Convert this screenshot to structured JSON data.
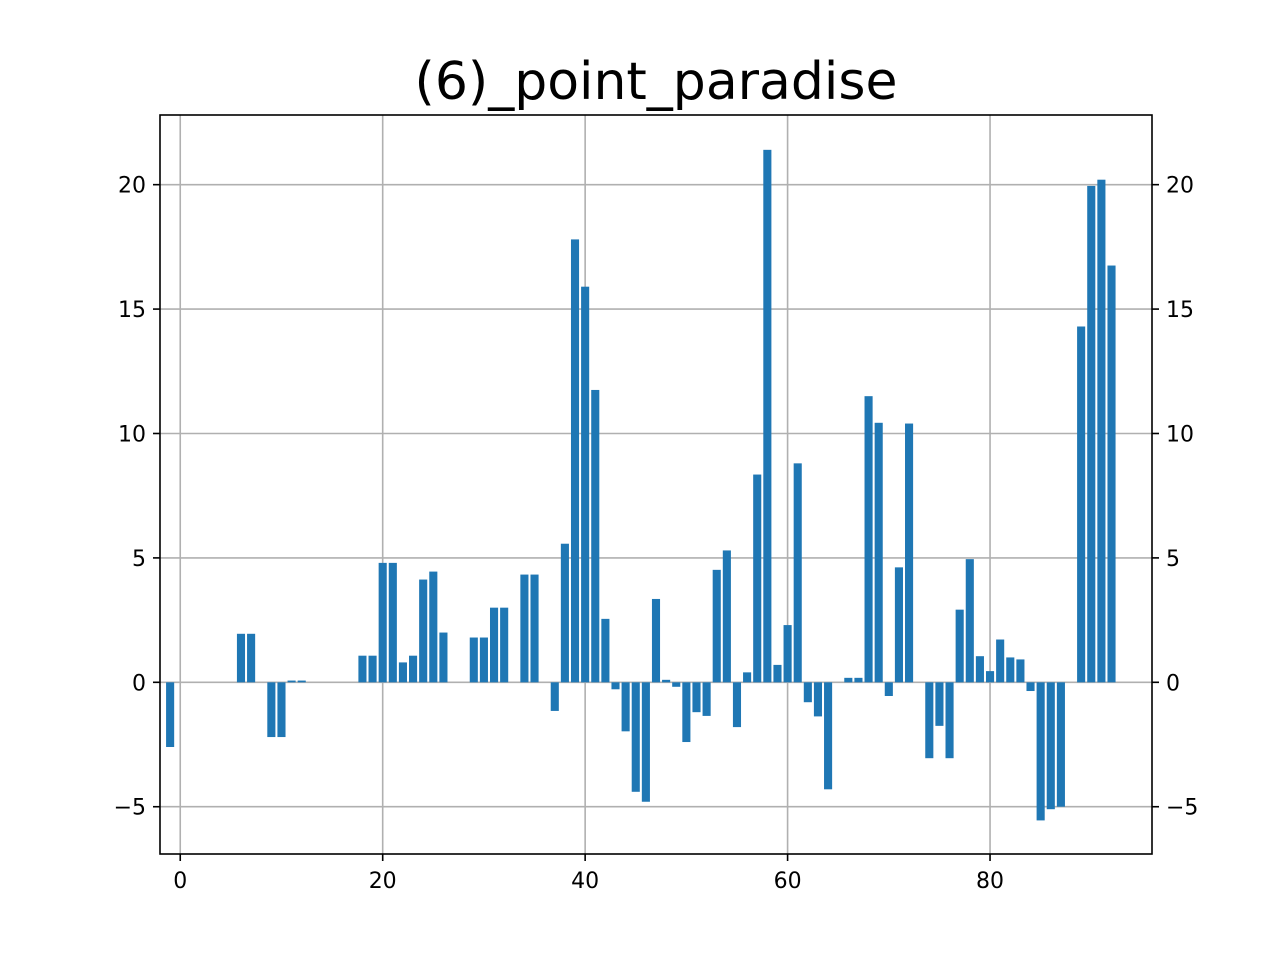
{
  "chart_data": {
    "type": "bar",
    "title": "(6)_point_paradise",
    "xlabel": "",
    "ylabel": "",
    "xlim": [
      -2,
      96
    ],
    "ylim": [
      -6.9,
      22.8
    ],
    "x_ticks": [
      0,
      20,
      40,
      60,
      80
    ],
    "y_ticks": [
      -5,
      0,
      5,
      10,
      15,
      20
    ],
    "y_tick_labels": [
      "−5",
      "0",
      "5",
      "10",
      "15",
      "20"
    ],
    "y_axis_right_mirror": true,
    "grid": true,
    "bar_color": "#1f77b4",
    "x": [
      -1,
      6,
      7,
      9,
      10,
      11,
      12,
      18,
      19,
      20,
      21,
      22,
      23,
      24,
      25,
      26,
      29,
      30,
      31,
      32,
      34,
      35,
      37,
      38,
      39,
      40,
      41,
      42,
      43,
      44,
      45,
      46,
      47,
      48,
      49,
      50,
      51,
      52,
      53,
      54,
      55,
      56,
      57,
      58,
      59,
      60,
      61,
      62,
      63,
      64,
      66,
      67,
      68,
      69,
      70,
      71,
      72,
      74,
      75,
      76,
      77,
      78,
      79,
      80,
      81,
      82,
      83,
      84,
      85,
      86,
      87,
      89,
      90,
      91,
      92
    ],
    "values": [
      -2.6,
      1.95,
      1.95,
      -2.2,
      -2.2,
      0.07,
      0.07,
      1.07,
      1.07,
      4.8,
      4.8,
      0.8,
      1.07,
      4.13,
      4.45,
      2.0,
      1.8,
      1.8,
      3.0,
      3.0,
      4.33,
      4.33,
      -1.15,
      5.57,
      17.8,
      15.9,
      11.75,
      2.55,
      -0.28,
      -1.97,
      -4.4,
      -4.8,
      3.35,
      0.1,
      -0.18,
      -2.4,
      -1.2,
      -1.35,
      4.52,
      5.3,
      -1.8,
      0.4,
      8.35,
      21.4,
      0.7,
      2.3,
      8.8,
      -0.8,
      -1.37,
      -4.3,
      0.18,
      0.18,
      11.5,
      10.43,
      -0.55,
      4.62,
      10.4,
      -3.05,
      -1.75,
      -3.05,
      2.92,
      4.95,
      1.05,
      0.45,
      1.72,
      1.0,
      0.92,
      -0.35,
      -5.55,
      -5.1,
      -5.0,
      14.3,
      19.95,
      20.2,
      16.75
    ]
  }
}
